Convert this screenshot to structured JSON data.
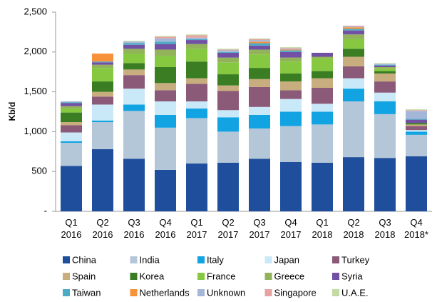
{
  "chart_data": {
    "type": "stacked_bar",
    "y_label": "Kb/d",
    "categories": [
      "Q1 2016",
      "Q2 2016",
      "Q3 2016",
      "Q4 2016",
      "Q1 2017",
      "Q2 2017",
      "Q3 2017",
      "Q4 2017",
      "Q1 2018",
      "Q2 2018",
      "Q3 2018",
      "Q4 2018*"
    ],
    "ylim": [
      0,
      2500
    ],
    "yticks": [
      {
        "value": 0,
        "label": "-"
      },
      500,
      {
        "value": 1000,
        "label": "1,000"
      },
      {
        "value": 1500,
        "label": "1,500"
      },
      {
        "value": 2000,
        "label": "2,000"
      },
      {
        "value": 2500,
        "label": "2,500"
      }
    ],
    "series": [
      {
        "name": "China",
        "color": "#1f4e9c",
        "values": [
          570,
          780,
          660,
          520,
          600,
          610,
          660,
          620,
          610,
          680,
          670,
          690
        ]
      },
      {
        "name": "India",
        "color": "#b4c7d9",
        "values": [
          290,
          340,
          600,
          530,
          570,
          390,
          380,
          450,
          480,
          700,
          550,
          270
        ]
      },
      {
        "name": "Italy",
        "color": "#12a3e3",
        "values": [
          20,
          20,
          80,
          160,
          120,
          180,
          170,
          180,
          160,
          160,
          160,
          40
        ]
      },
      {
        "name": "Japan",
        "color": "#c9e9f8",
        "values": [
          110,
          200,
          200,
          170,
          90,
          90,
          100,
          160,
          100,
          130,
          110,
          20
        ]
      },
      {
        "name": "Turkey",
        "color": "#8b5a78",
        "values": [
          90,
          100,
          170,
          140,
          220,
          240,
          250,
          110,
          200,
          150,
          140,
          50
        ]
      },
      {
        "name": "Spain",
        "color": "#c8ae7f",
        "values": [
          40,
          60,
          70,
          90,
          70,
          70,
          100,
          110,
          120,
          120,
          100,
          20
        ]
      },
      {
        "name": "Korea",
        "color": "#3a7d23",
        "values": [
          120,
          130,
          80,
          200,
          210,
          140,
          140,
          100,
          90,
          100,
          30,
          20
        ]
      },
      {
        "name": "France",
        "color": "#86c840",
        "values": [
          50,
          170,
          120,
          140,
          160,
          150,
          170,
          150,
          160,
          120,
          30,
          0
        ]
      },
      {
        "name": "Greece",
        "color": "#92b35a",
        "values": [
          30,
          40,
          60,
          80,
          60,
          60,
          60,
          50,
          20,
          60,
          20,
          0
        ]
      },
      {
        "name": "Syria",
        "color": "#7250a4",
        "values": [
          40,
          30,
          50,
          70,
          50,
          60,
          50,
          70,
          50,
          50,
          20,
          40
        ]
      },
      {
        "name": "Taiwan",
        "color": "#4bacc6",
        "values": [
          10,
          10,
          20,
          30,
          10,
          10,
          30,
          20,
          0,
          20,
          10,
          10
        ]
      },
      {
        "name": "Netherlands",
        "color": "#f7923a",
        "values": [
          0,
          100,
          0,
          0,
          0,
          0,
          20,
          10,
          0,
          20,
          0,
          0
        ]
      },
      {
        "name": "Unknown",
        "color": "#a5b7d8",
        "values": [
          10,
          0,
          20,
          40,
          20,
          20,
          20,
          10,
          0,
          10,
          10,
          100
        ]
      },
      {
        "name": "Singapore",
        "color": "#e6a3a2",
        "values": [
          0,
          0,
          0,
          20,
          30,
          10,
          10,
          10,
          0,
          10,
          0,
          10
        ]
      },
      {
        "name": "U.A.E.",
        "color": "#c2dba4",
        "values": [
          0,
          0,
          10,
          10,
          10,
          10,
          10,
          10,
          0,
          0,
          10,
          10
        ]
      }
    ]
  }
}
